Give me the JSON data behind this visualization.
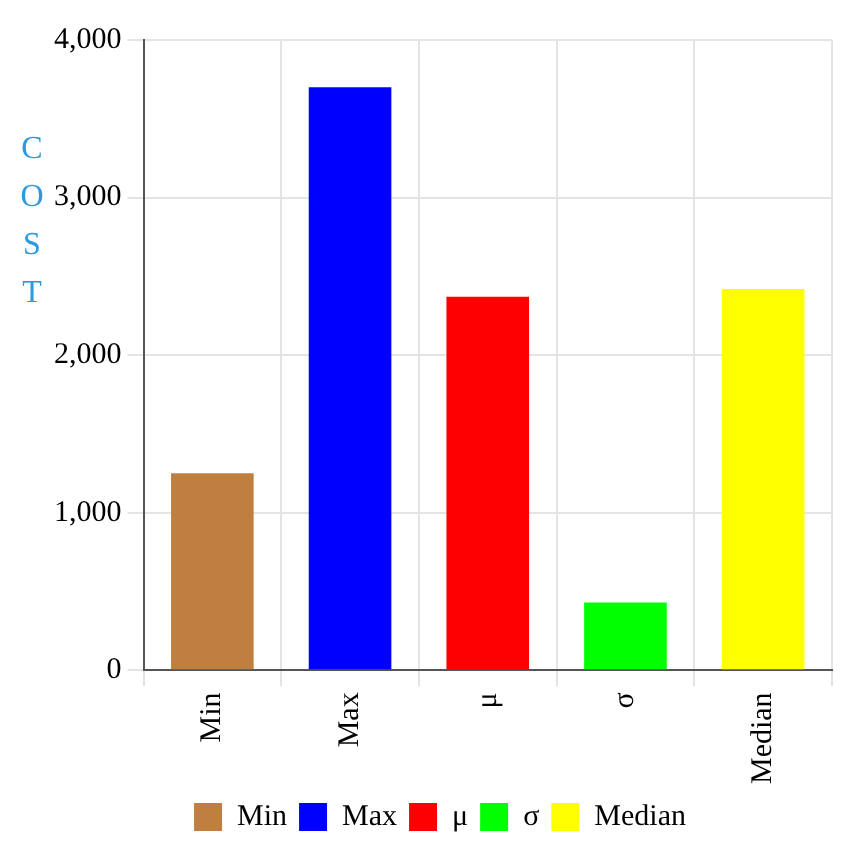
{
  "chart_data": {
    "type": "bar",
    "ylabel": "COST",
    "categories": [
      "Min",
      "Max",
      "μ",
      "σ",
      "Median"
    ],
    "series": [
      {
        "name": "Min",
        "color": "#bf7f3f",
        "values": [
          1250,
          null,
          null,
          null,
          null
        ]
      },
      {
        "name": "Max",
        "color": "#0000ff",
        "values": [
          null,
          3700,
          null,
          null,
          null
        ]
      },
      {
        "name": "μ",
        "color": "#ff0000",
        "values": [
          null,
          null,
          2370,
          null,
          null
        ]
      },
      {
        "name": "σ",
        "color": "#00ff00",
        "values": [
          null,
          null,
          null,
          430,
          null
        ]
      },
      {
        "name": "Median",
        "color": "#ffff00",
        "values": [
          null,
          null,
          null,
          null,
          2420
        ]
      }
    ],
    "ylim": [
      0,
      4000
    ],
    "yticks": [
      {
        "value": 0,
        "label": "0"
      },
      {
        "value": 1000,
        "label": "1,000"
      },
      {
        "value": 2000,
        "label": "2,000"
      },
      {
        "value": 3000,
        "label": "3,000"
      },
      {
        "value": 4000,
        "label": "4,000"
      }
    ],
    "grid": true,
    "legend": "bottom"
  }
}
